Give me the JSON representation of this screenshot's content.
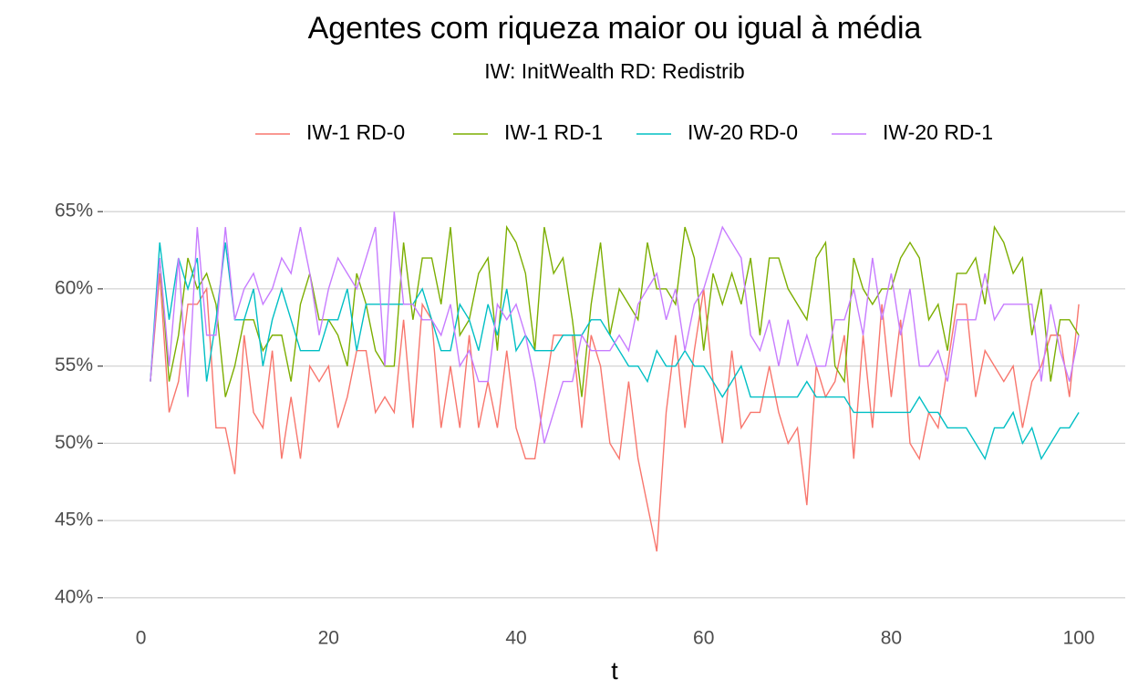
{
  "chart_data": {
    "type": "line",
    "title": "Agentes com riqueza maior ou igual à média",
    "subtitle": "IW: InitWealth   RD: Redistrib",
    "x_label": "t",
    "x": [
      1,
      2,
      3,
      4,
      5,
      6,
      7,
      8,
      9,
      10,
      11,
      12,
      13,
      14,
      15,
      16,
      17,
      18,
      19,
      20,
      21,
      22,
      23,
      24,
      25,
      26,
      27,
      28,
      29,
      30,
      31,
      32,
      33,
      34,
      35,
      36,
      37,
      38,
      39,
      40,
      41,
      42,
      43,
      44,
      45,
      46,
      47,
      48,
      49,
      50,
      51,
      52,
      53,
      54,
      55,
      56,
      57,
      58,
      59,
      60,
      61,
      62,
      63,
      64,
      65,
      66,
      67,
      68,
      69,
      70,
      71,
      72,
      73,
      74,
      75,
      76,
      77,
      78,
      79,
      80,
      81,
      82,
      83,
      84,
      85,
      86,
      87,
      88,
      89,
      90,
      91,
      92,
      93,
      94,
      95,
      96,
      97,
      98,
      99,
      100
    ],
    "series": [
      {
        "name": "IW-1 RD-0",
        "color": "#F8766D",
        "values": [
          54,
          61,
          52,
          54,
          59,
          59,
          60,
          51,
          51,
          48,
          57,
          52,
          51,
          56,
          49,
          53,
          49,
          55,
          54,
          55,
          51,
          53,
          56,
          56,
          52,
          53,
          52,
          58,
          51,
          59,
          58,
          51,
          55,
          51,
          57,
          51,
          54,
          51,
          56,
          51,
          49,
          49,
          53,
          57,
          57,
          57,
          51,
          57,
          55,
          50,
          49,
          54,
          49,
          46,
          43,
          52,
          57,
          51,
          56,
          60,
          54,
          50,
          56,
          51,
          52,
          52,
          55,
          52,
          50,
          51,
          46,
          55,
          53,
          54,
          57,
          49,
          57,
          51,
          59,
          53,
          58,
          50,
          49,
          52,
          51,
          55,
          59,
          59,
          53,
          56,
          55,
          54,
          55,
          51,
          54,
          55,
          57,
          57,
          53,
          59
        ]
      },
      {
        "name": "IW-1 RD-1",
        "color": "#7CAE00",
        "values": [
          54,
          62,
          54,
          57,
          62,
          60,
          61,
          59,
          53,
          55,
          58,
          58,
          56,
          57,
          57,
          54,
          59,
          61,
          58,
          58,
          57,
          55,
          61,
          59,
          56,
          55,
          55,
          63,
          58,
          62,
          62,
          59,
          64,
          57,
          58,
          61,
          62,
          56,
          64,
          63,
          61,
          56,
          64,
          61,
          62,
          58,
          53,
          59,
          63,
          57,
          60,
          59,
          58,
          63,
          60,
          60,
          59,
          64,
          62,
          56,
          61,
          59,
          61,
          59,
          62,
          57,
          62,
          62,
          60,
          59,
          58,
          62,
          63,
          55,
          54,
          62,
          60,
          59,
          60,
          60,
          62,
          63,
          62,
          58,
          59,
          56,
          61,
          61,
          62,
          59,
          64,
          63,
          61,
          62,
          57,
          60,
          54,
          58,
          58,
          57
        ]
      },
      {
        "name": "IW-20 RD-0",
        "color": "#00BFC4",
        "values": [
          54,
          63,
          58,
          62,
          60,
          62,
          54,
          58,
          63,
          58,
          58,
          60,
          55,
          58,
          60,
          58,
          56,
          56,
          56,
          58,
          58,
          60,
          56,
          59,
          59,
          59,
          59,
          59,
          59,
          60,
          58,
          56,
          56,
          59,
          58,
          56,
          59,
          57,
          60,
          56,
          57,
          56,
          56,
          56,
          57,
          57,
          57,
          58,
          58,
          57,
          56,
          55,
          55,
          54,
          56,
          55,
          55,
          56,
          55,
          55,
          54,
          53,
          54,
          55,
          53,
          53,
          53,
          53,
          53,
          53,
          54,
          53,
          53,
          53,
          53,
          52,
          52,
          52,
          52,
          52,
          52,
          52,
          53,
          52,
          52,
          51,
          51,
          51,
          50,
          49,
          51,
          51,
          52,
          50,
          51,
          49,
          50,
          51,
          51,
          52
        ]
      },
      {
        "name": "IW-20 RD-1",
        "color": "#C77CFF",
        "values": [
          54,
          62,
          55,
          62,
          53,
          64,
          57,
          57,
          64,
          58,
          60,
          61,
          59,
          60,
          62,
          61,
          64,
          61,
          57,
          60,
          62,
          61,
          60,
          62,
          64,
          55,
          65,
          59,
          59,
          58,
          58,
          57,
          59,
          55,
          56,
          54,
          54,
          59,
          58,
          59,
          57,
          54,
          50,
          52,
          54,
          54,
          57,
          56,
          56,
          56,
          57,
          56,
          59,
          60,
          61,
          58,
          60,
          56,
          59,
          60,
          62,
          64,
          63,
          62,
          57,
          56,
          58,
          55,
          58,
          55,
          57,
          55,
          55,
          58,
          58,
          60,
          57,
          62,
          58,
          61,
          57,
          60,
          55,
          55,
          56,
          54,
          58,
          58,
          58,
          61,
          58,
          59,
          59,
          59,
          59,
          54,
          59,
          56,
          54,
          57
        ]
      }
    ],
    "xlim": [
      -3.95,
      104.95
    ],
    "xticks": [
      0,
      20,
      40,
      60,
      80,
      100
    ],
    "ylim": [
      38.75,
      66.25
    ],
    "yticks": [
      {
        "value": 40,
        "label": "40%"
      },
      {
        "value": 45,
        "label": "45%"
      },
      {
        "value": 50,
        "label": "50%"
      },
      {
        "value": 55,
        "label": "55%"
      },
      {
        "value": 60,
        "label": "60%"
      },
      {
        "value": 65,
        "label": "65%"
      }
    ],
    "grid": true,
    "legend": "top"
  }
}
